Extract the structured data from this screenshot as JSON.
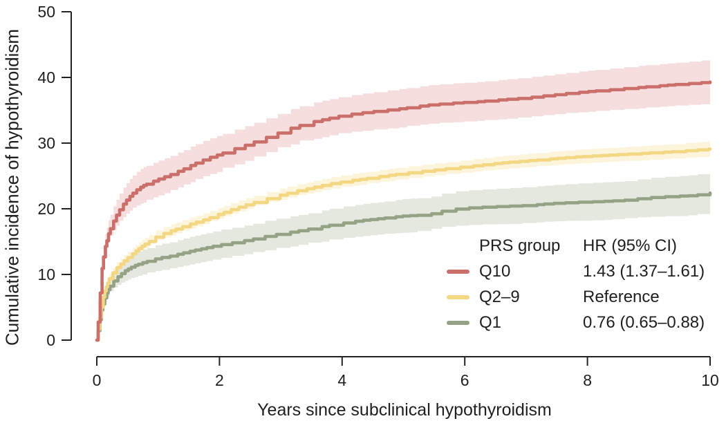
{
  "chart_data": {
    "type": "line",
    "subtype": "kaplan-meier-cumulative-incidence",
    "title": "",
    "xlabel": "Years since subclinical hypothyroidism",
    "ylabel": "Cumulative incidence of hypothyroidism",
    "xlim": [
      0,
      10
    ],
    "ylim": [
      0,
      50
    ],
    "xticks": [
      "0",
      "2",
      "4",
      "6",
      "8",
      "10"
    ],
    "yticks": [
      "0",
      "10",
      "20",
      "30",
      "40",
      "50"
    ],
    "grid": false,
    "axis_color": "#222222",
    "text_color": "#1f1f1f",
    "legend": {
      "position": "inside lower right",
      "col1_header": "PRS group",
      "col2_header": "HR (95% CI)",
      "entries": [
        {
          "label": "Q10",
          "hr": "1.43 (1.37–1.61)"
        },
        {
          "label": "Q2–9",
          "hr": "Reference"
        },
        {
          "label": "Q1",
          "hr": "0.76 (0.65–0.88)"
        }
      ]
    },
    "series": [
      {
        "name": "Q10",
        "color": "#ca6f69",
        "band_color": "#f6dedf",
        "ci_band": true,
        "points": [
          [
            0,
            0,
            0.4
          ],
          [
            0.04,
            5,
            1.0
          ],
          [
            0.08,
            10.5,
            1.5
          ],
          [
            0.12,
            13.5,
            1.8
          ],
          [
            0.2,
            16.5,
            2.1
          ],
          [
            0.3,
            18.7,
            2.3
          ],
          [
            0.4,
            20.3,
            2.5
          ],
          [
            0.5,
            21.5,
            2.6
          ],
          [
            0.62,
            22.7,
            2.7
          ],
          [
            0.75,
            23.5,
            2.8
          ],
          [
            0.9,
            24.1,
            2.8
          ],
          [
            1.0,
            24.5,
            2.8
          ],
          [
            1.2,
            25.2,
            2.85
          ],
          [
            1.4,
            26.0,
            2.85
          ],
          [
            1.6,
            26.9,
            2.9
          ],
          [
            1.8,
            27.7,
            2.9
          ],
          [
            2.0,
            28.3,
            2.9
          ],
          [
            2.2,
            29.0,
            2.9
          ],
          [
            2.4,
            29.6,
            2.9
          ],
          [
            2.6,
            30.3,
            2.9
          ],
          [
            2.8,
            31.0,
            2.9
          ],
          [
            3.0,
            31.7,
            2.9
          ],
          [
            3.2,
            32.4,
            2.9
          ],
          [
            3.5,
            33.2,
            2.9
          ],
          [
            3.8,
            33.8,
            2.9
          ],
          [
            4.0,
            34.2,
            2.9
          ],
          [
            4.3,
            34.6,
            2.9
          ],
          [
            4.6,
            34.9,
            2.95
          ],
          [
            5.0,
            35.3,
            3.0
          ],
          [
            5.4,
            35.8,
            3.0
          ],
          [
            5.8,
            36.1,
            3.0
          ],
          [
            6.2,
            36.3,
            3.0
          ],
          [
            6.6,
            36.6,
            3.05
          ],
          [
            7.0,
            36.9,
            3.1
          ],
          [
            7.4,
            37.3,
            3.1
          ],
          [
            7.8,
            37.7,
            3.15
          ],
          [
            8.2,
            38.0,
            3.2
          ],
          [
            8.6,
            38.3,
            3.25
          ],
          [
            9.0,
            38.6,
            3.3
          ],
          [
            9.4,
            38.9,
            3.3
          ],
          [
            9.7,
            39.1,
            3.35
          ],
          [
            10,
            39.3,
            3.4
          ]
        ]
      },
      {
        "name": "Q2–9",
        "color": "#f3d783",
        "band_color": "#fdf4dc",
        "ci_band": true,
        "points": [
          [
            0,
            0,
            0.2
          ],
          [
            0.04,
            3,
            0.4
          ],
          [
            0.08,
            5.5,
            0.5
          ],
          [
            0.12,
            7.2,
            0.6
          ],
          [
            0.2,
            9.3,
            0.7
          ],
          [
            0.3,
            10.8,
            0.8
          ],
          [
            0.45,
            12.1,
            0.85
          ],
          [
            0.6,
            13.3,
            0.9
          ],
          [
            0.75,
            14.4,
            0.95
          ],
          [
            0.9,
            15.3,
            1.0
          ],
          [
            1.0,
            15.9,
            1.0
          ],
          [
            1.2,
            16.6,
            1.0
          ],
          [
            1.5,
            17.6,
            1.0
          ],
          [
            1.8,
            18.5,
            1.0
          ],
          [
            2.0,
            19.2,
            1.0
          ],
          [
            2.2,
            19.9,
            1.0
          ],
          [
            2.5,
            20.8,
            1.0
          ],
          [
            2.8,
            21.6,
            1.0
          ],
          [
            3.0,
            22.1,
            1.0
          ],
          [
            3.2,
            22.6,
            1.0
          ],
          [
            3.5,
            23.2,
            1.0
          ],
          [
            3.8,
            23.8,
            1.0
          ],
          [
            4.0,
            24.1,
            1.0
          ],
          [
            4.3,
            24.5,
            1.0
          ],
          [
            4.6,
            24.9,
            1.0
          ],
          [
            5.0,
            25.4,
            1.0
          ],
          [
            5.4,
            25.8,
            1.0
          ],
          [
            5.8,
            26.2,
            1.0
          ],
          [
            6.2,
            26.6,
            1.05
          ],
          [
            6.6,
            27.0,
            1.05
          ],
          [
            7.0,
            27.3,
            1.05
          ],
          [
            7.4,
            27.6,
            1.1
          ],
          [
            7.8,
            27.9,
            1.1
          ],
          [
            8.2,
            28.1,
            1.1
          ],
          [
            8.6,
            28.3,
            1.1
          ],
          [
            9.0,
            28.5,
            1.15
          ],
          [
            9.4,
            28.7,
            1.15
          ],
          [
            9.7,
            28.9,
            1.2
          ],
          [
            10,
            29.1,
            1.2
          ]
        ]
      },
      {
        "name": "Q1",
        "color": "#96a285",
        "band_color": "#e4e8de",
        "ci_band": true,
        "points": [
          [
            0,
            0,
            0.3
          ],
          [
            0.04,
            2.5,
            0.8
          ],
          [
            0.08,
            4.8,
            1.1
          ],
          [
            0.12,
            6.2,
            1.3
          ],
          [
            0.2,
            8.0,
            1.5
          ],
          [
            0.3,
            9.3,
            1.6
          ],
          [
            0.45,
            10.5,
            1.8
          ],
          [
            0.6,
            11.3,
            1.9
          ],
          [
            0.75,
            11.8,
            2.0
          ],
          [
            0.9,
            12.2,
            2.0
          ],
          [
            1.0,
            12.5,
            2.1
          ],
          [
            1.2,
            12.8,
            2.1
          ],
          [
            1.5,
            13.5,
            2.2
          ],
          [
            1.8,
            14.1,
            2.2
          ],
          [
            2.0,
            14.5,
            2.3
          ],
          [
            2.2,
            14.8,
            2.3
          ],
          [
            2.5,
            15.3,
            2.3
          ],
          [
            2.8,
            15.9,
            2.4
          ],
          [
            3.0,
            16.2,
            2.4
          ],
          [
            3.2,
            16.5,
            2.4
          ],
          [
            3.5,
            17.0,
            2.4
          ],
          [
            3.8,
            17.5,
            2.5
          ],
          [
            4.0,
            17.8,
            2.5
          ],
          [
            4.3,
            18.2,
            2.5
          ],
          [
            4.6,
            18.5,
            2.5
          ],
          [
            5.0,
            18.9,
            2.6
          ],
          [
            5.4,
            19.1,
            2.6
          ],
          [
            5.7,
            19.8,
            2.7
          ],
          [
            6.0,
            20.1,
            2.7
          ],
          [
            6.4,
            20.3,
            2.7
          ],
          [
            7.0,
            20.5,
            2.8
          ],
          [
            7.4,
            20.8,
            2.8
          ],
          [
            7.8,
            21.0,
            2.85
          ],
          [
            8.2,
            21.1,
            2.9
          ],
          [
            8.6,
            21.3,
            2.9
          ],
          [
            9.0,
            21.7,
            3.0
          ],
          [
            9.4,
            21.9,
            3.05
          ],
          [
            9.7,
            22.0,
            3.1
          ],
          [
            10,
            22.4,
            3.2
          ]
        ]
      }
    ]
  }
}
